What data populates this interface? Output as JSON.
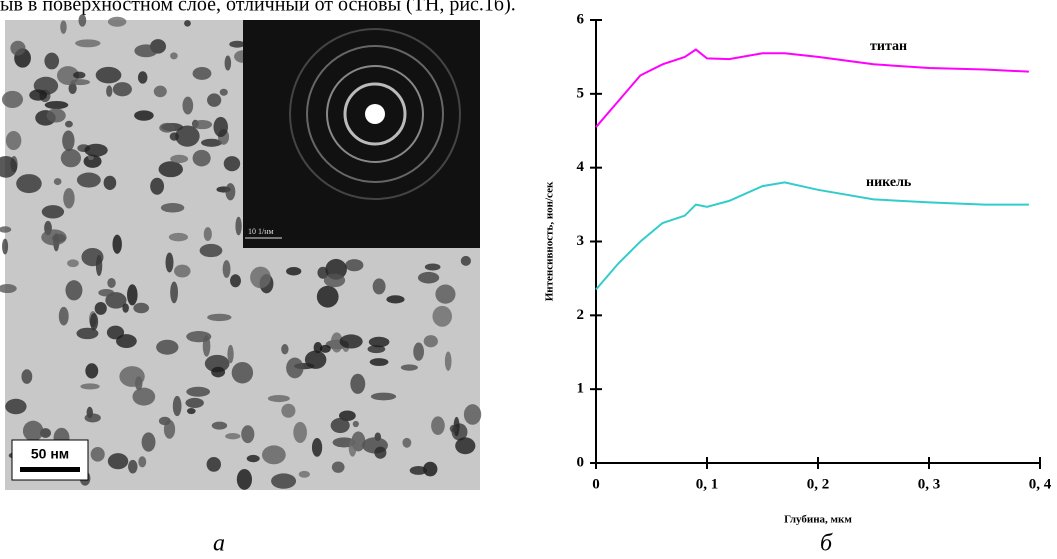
{
  "header": {
    "text": "ыв в поверхностном слое, отличный от основы (ТН, рис.1б)."
  },
  "micrograph": {
    "scale_bar": "50 нм",
    "inset_scale": "10 1/нм",
    "caption": "а"
  },
  "chart_data": {
    "type": "line",
    "caption": "б",
    "xlabel": "Глубина, мкм",
    "ylabel": "Интенсивность, ион/сек",
    "x": [
      0,
      0.02,
      0.04,
      0.06,
      0.08,
      0.09,
      0.1,
      0.12,
      0.15,
      0.17,
      0.2,
      0.25,
      0.3,
      0.35,
      0.39
    ],
    "series": [
      {
        "name": "титан",
        "color": "#ff00ff",
        "values": [
          4.55,
          4.9,
          5.25,
          5.4,
          5.5,
          5.6,
          5.48,
          5.47,
          5.55,
          5.55,
          5.5,
          5.4,
          5.35,
          5.33,
          5.3
        ]
      },
      {
        "name": "никель",
        "color": "#33cccc",
        "values": [
          2.35,
          2.7,
          3.0,
          3.25,
          3.35,
          3.5,
          3.47,
          3.55,
          3.75,
          3.8,
          3.7,
          3.57,
          3.53,
          3.5,
          3.5
        ]
      }
    ],
    "xlim": [
      0,
      0.4
    ],
    "xticks": [
      0,
      {
        "value": 0.1,
        "label": "0, 1"
      },
      {
        "value": 0.2,
        "label": "0, 2"
      },
      {
        "value": 0.3,
        "label": "0, 3"
      },
      {
        "value": 0.4,
        "label": "0, 4"
      }
    ],
    "ylim": [
      0,
      6
    ],
    "yticks": [
      0,
      1,
      2,
      3,
      4,
      5,
      6
    ]
  }
}
